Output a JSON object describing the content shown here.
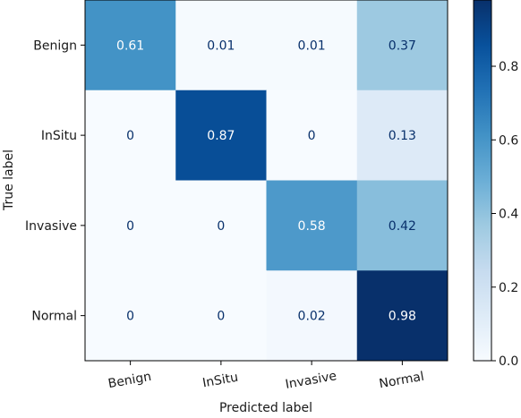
{
  "chart_data": {
    "type": "heatmap",
    "title": "",
    "xlabel": "Predicted label",
    "ylabel": "True label",
    "x_categories": [
      "Benign",
      "InSitu",
      "Invasive",
      "Normal"
    ],
    "y_categories": [
      "Benign",
      "InSitu",
      "Invasive",
      "Normal"
    ],
    "values": [
      [
        0.61,
        0.01,
        0.01,
        0.37
      ],
      [
        0,
        0.87,
        0,
        0.13
      ],
      [
        0,
        0,
        0.58,
        0.42
      ],
      [
        0,
        0,
        0.02,
        0.98
      ]
    ],
    "cell_labels": [
      [
        "0.61",
        "0.01",
        "0.01",
        "0.37"
      ],
      [
        "0",
        "0.87",
        "0",
        "0.13"
      ],
      [
        "0",
        "0",
        "0.58",
        "0.42"
      ],
      [
        "0",
        "0",
        "0.02",
        "0.98"
      ]
    ],
    "colormap": "Blues",
    "colorbar": {
      "range": [
        0,
        0.98
      ],
      "ticks": [
        0.0,
        0.2,
        0.4,
        0.6,
        0.8
      ],
      "tick_labels": [
        "0.0",
        "0.2",
        "0.4",
        "0.6",
        "0.8"
      ]
    }
  }
}
